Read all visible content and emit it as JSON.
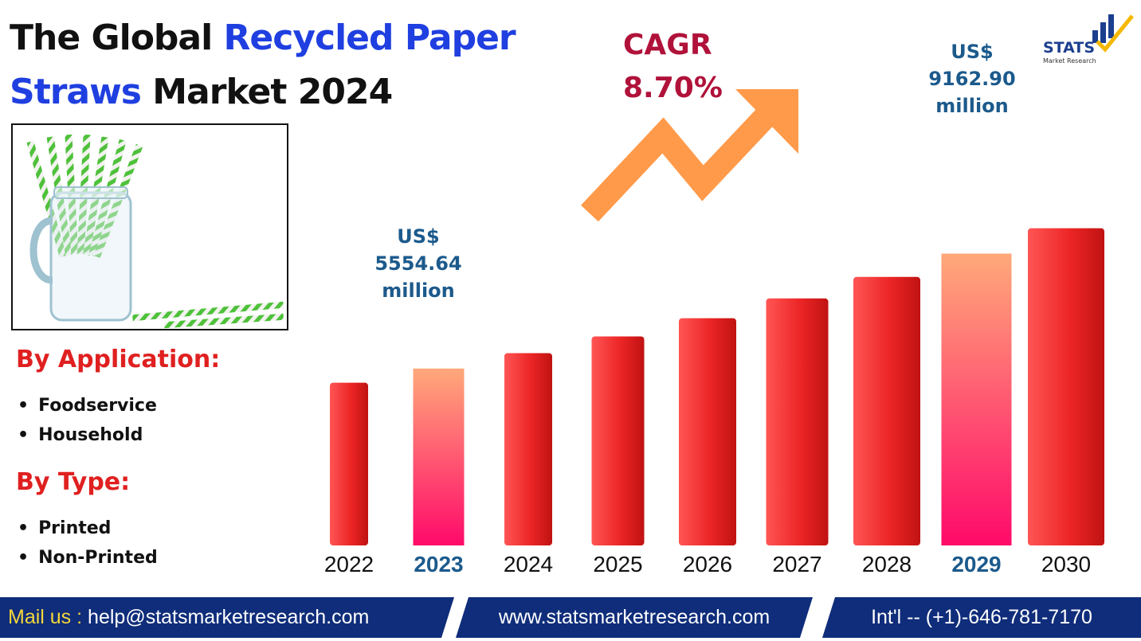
{
  "title": {
    "part1": "The Global ",
    "part2": "Recycled Paper Straws",
    "part3": " Market 2024"
  },
  "sidebar": {
    "application_heading": "By Application:",
    "application_items": [
      "Foodservice",
      "Household"
    ],
    "type_heading": "By Type:",
    "type_items": [
      "Printed",
      "Non-Printed"
    ]
  },
  "cagr": {
    "label": "CAGR",
    "value": "8.70%"
  },
  "logo": {
    "main": "STATS",
    "sub": "Market Research"
  },
  "callouts": {
    "y2023": {
      "currency": "US$",
      "value": "5554.64",
      "unit": "million"
    },
    "y2029": {
      "currency": "US$",
      "value": "9162.90",
      "unit": "million"
    }
  },
  "footer": {
    "mail_label": "Mail us :",
    "email": "help@statsmarketresearch.com",
    "website": "www.statsmarketresearch.com",
    "phone": "Int'l -- (+1)-646-781-7170"
  },
  "colors": {
    "bar_red": "#e8191e",
    "bar_highlight_top": "#ffa97a",
    "bar_highlight_bottom": "#ff0a6a",
    "arrow": "#ff9a4a",
    "navy": "#0f2d7a",
    "title_blue": "#1f3fe0",
    "heading_red": "#e02020",
    "callout_blue": "#1c5a8c"
  },
  "chart_data": {
    "type": "bar",
    "categories": [
      "2022",
      "2023",
      "2024",
      "2025",
      "2026",
      "2027",
      "2028",
      "2029",
      "2030"
    ],
    "values": [
      5110,
      5554.64,
      6038,
      6563,
      7134,
      7755,
      8430,
      9162.9,
      9960
    ],
    "highlighted": [
      "2023",
      "2029"
    ],
    "ylim": [
      0,
      10000
    ],
    "grid": false,
    "legend": "none"
  }
}
